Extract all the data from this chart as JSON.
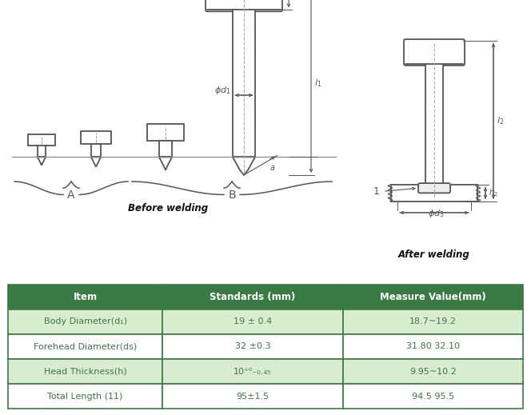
{
  "bg_color": "#ffffff",
  "table_header_color": "#3a7a44",
  "table_row_color_light": "#d9ecd0",
  "table_row_color_white": "#ffffff",
  "table_header_text_color": "#ffffff",
  "table_row_text_color": "#3a7a44",
  "table_headers": [
    "Item",
    "Standards (mm)",
    "Measure Value(mm)"
  ],
  "table_rows": [
    [
      "Body Diameter(d₁)",
      "19 ± 0.4",
      "18.7~19.2"
    ],
    [
      "Forehead Diameter(ds)",
      "32 ±0.3",
      "31.80 32.10"
    ],
    [
      "Head Thickness(h)",
      "10⁺⁰₋₀.₄₅",
      "9.95~10.2"
    ],
    [
      "Total Length (11)",
      "95±1.5",
      "94.5 95.5"
    ]
  ],
  "label_before_welding": "Before welding",
  "label_after_welding": "After welding",
  "label_A": "A",
  "label_B": "B",
  "line_color": "#555555"
}
